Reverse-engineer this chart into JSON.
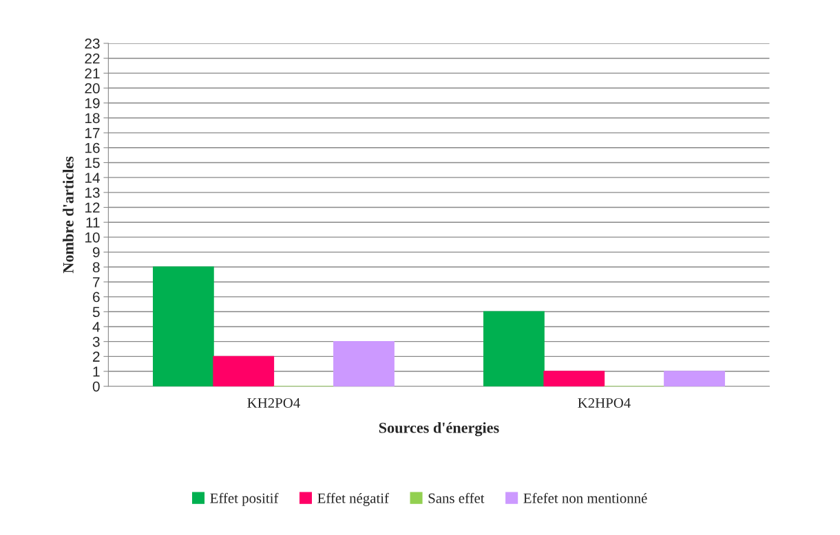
{
  "chart_data": {
    "type": "bar",
    "xlabel": "Sources d'énergies",
    "ylabel": "Nombre d'articles",
    "categories": [
      "KH2PO4",
      "K2HPO4"
    ],
    "series": [
      {
        "name": "Effet positif",
        "color": "#00b050",
        "values": [
          8,
          5
        ]
      },
      {
        "name": "Effet négatif",
        "color": "#ff0066",
        "values": [
          2,
          1
        ]
      },
      {
        "name": "Sans effet",
        "color": "#92d050",
        "values": [
          0,
          0
        ]
      },
      {
        "name": "Efefet non mentionné",
        "color": "#cc99ff",
        "values": [
          3,
          1
        ]
      }
    ],
    "ylim": [
      0,
      23
    ],
    "yticks": [
      0,
      1,
      2,
      3,
      4,
      5,
      6,
      7,
      8,
      9,
      10,
      11,
      12,
      13,
      14,
      15,
      16,
      17,
      18,
      19,
      20,
      21,
      22,
      23
    ],
    "grid": "y",
    "legend": "bottom"
  }
}
